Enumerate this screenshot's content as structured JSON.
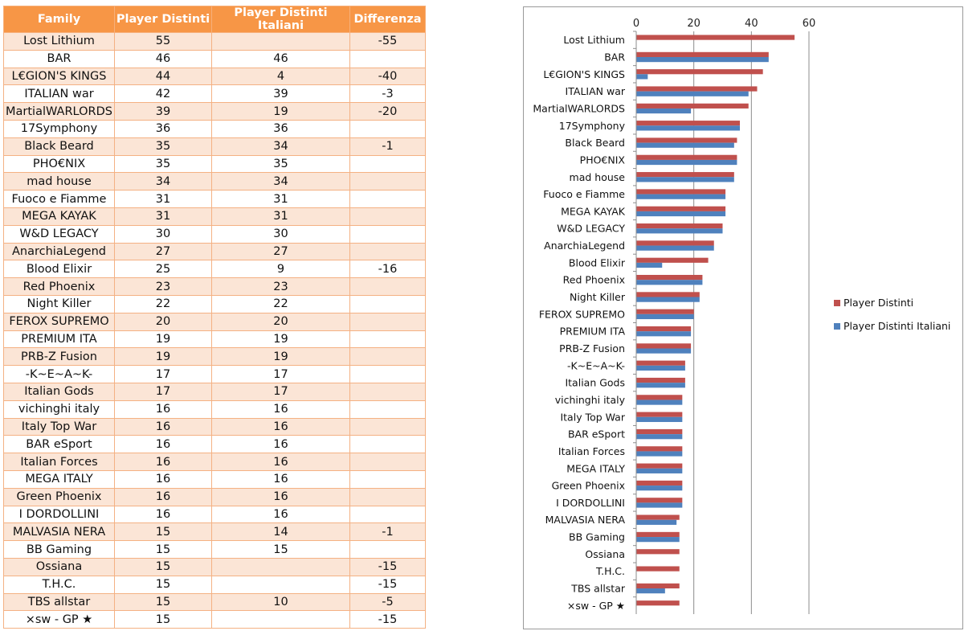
{
  "table": {
    "headers": [
      "Family",
      "Player Distinti",
      "Player Distinti Italiani",
      "Differenza"
    ],
    "rows": [
      [
        "Lost Lithium",
        "55",
        "",
        "-55"
      ],
      [
        "BAR",
        "46",
        "46",
        ""
      ],
      [
        "L€GION'S KINGS",
        "44",
        "4",
        "-40"
      ],
      [
        "ITALIAN war",
        "42",
        "39",
        "-3"
      ],
      [
        "MartialWARLORDS",
        "39",
        "19",
        "-20"
      ],
      [
        "17Symphony",
        "36",
        "36",
        ""
      ],
      [
        "Black Beard",
        "35",
        "34",
        "-1"
      ],
      [
        "PHO€NIX",
        "35",
        "35",
        ""
      ],
      [
        "mad house",
        "34",
        "34",
        ""
      ],
      [
        "Fuoco e Fiamme",
        "31",
        "31",
        ""
      ],
      [
        "MEGA KAYAK",
        "31",
        "31",
        ""
      ],
      [
        "W&D LEGACY",
        "30",
        "30",
        ""
      ],
      [
        "AnarchiaLegend",
        "27",
        "27",
        ""
      ],
      [
        "Blood Elixir",
        "25",
        "9",
        "-16"
      ],
      [
        "Red Phoenix",
        "23",
        "23",
        ""
      ],
      [
        "Night Killer",
        "22",
        "22",
        ""
      ],
      [
        "FEROX SUPREMO",
        "20",
        "20",
        ""
      ],
      [
        "PREMIUM ITA",
        "19",
        "19",
        ""
      ],
      [
        "PRB-Z Fusion",
        "19",
        "19",
        ""
      ],
      [
        "-K~E~A~K-",
        "17",
        "17",
        ""
      ],
      [
        "Italian Gods",
        "17",
        "17",
        ""
      ],
      [
        "vichinghi italy",
        "16",
        "16",
        ""
      ],
      [
        "Italy Top War",
        "16",
        "16",
        ""
      ],
      [
        "BAR eSport",
        "16",
        "16",
        ""
      ],
      [
        "Italian Forces",
        "16",
        "16",
        ""
      ],
      [
        "MEGA ITALY",
        "16",
        "16",
        ""
      ],
      [
        "Green Phoenix",
        "16",
        "16",
        ""
      ],
      [
        "I DORDOLLINI",
        "16",
        "16",
        ""
      ],
      [
        "MALVASIA NERA",
        "15",
        "14",
        "-1"
      ],
      [
        "BB Gaming",
        "15",
        "15",
        ""
      ],
      [
        "Ossiana",
        "15",
        "",
        "-15"
      ],
      [
        "T.H.C.",
        "15",
        "",
        "-15"
      ],
      [
        "TBS allstar",
        "15",
        "10",
        "-5"
      ],
      [
        "×sw - GP ★",
        "15",
        "",
        "-15"
      ]
    ]
  },
  "chart_data": {
    "type": "bar",
    "orientation": "horizontal",
    "categories": [
      "Lost Lithium",
      "BAR",
      "L€GION'S KINGS",
      "ITALIAN war",
      "MartialWARLORDS",
      "17Symphony",
      "Black Beard",
      "PHO€NIX",
      "mad house",
      "Fuoco e Fiamme",
      "MEGA KAYAK",
      "W&D LEGACY",
      "AnarchiaLegend",
      "Blood Elixir",
      "Red Phoenix",
      "Night Killer",
      "FEROX SUPREMO",
      "PREMIUM ITA",
      "PRB-Z Fusion",
      "-K~E~A~K-",
      "Italian Gods",
      "vichinghi italy",
      "Italy Top War",
      "BAR eSport",
      "Italian Forces",
      "MEGA ITALY",
      "Green Phoenix",
      "I DORDOLLINI",
      "MALVASIA NERA",
      "BB Gaming",
      "Ossiana",
      "T.H.C.",
      "TBS allstar",
      "×sw - GP ★"
    ],
    "series": [
      {
        "name": "Player Distinti",
        "color": "#c0504d",
        "values": [
          55,
          46,
          44,
          42,
          39,
          36,
          35,
          35,
          34,
          31,
          31,
          30,
          27,
          25,
          23,
          22,
          20,
          19,
          19,
          17,
          17,
          16,
          16,
          16,
          16,
          16,
          16,
          16,
          15,
          15,
          15,
          15,
          15,
          15
        ]
      },
      {
        "name": "Player Distinti Italiani",
        "color": "#4f81bd",
        "values": [
          0,
          46,
          4,
          39,
          19,
          36,
          34,
          35,
          34,
          31,
          31,
          30,
          27,
          9,
          23,
          22,
          20,
          19,
          19,
          17,
          17,
          16,
          16,
          16,
          16,
          16,
          16,
          16,
          14,
          15,
          0,
          0,
          10,
          0
        ]
      }
    ],
    "xlim": [
      0,
      60
    ],
    "xticks": [
      "0",
      "20",
      "40",
      "60"
    ],
    "x_axis_position": "top",
    "grid": true,
    "legend_position": "right"
  }
}
